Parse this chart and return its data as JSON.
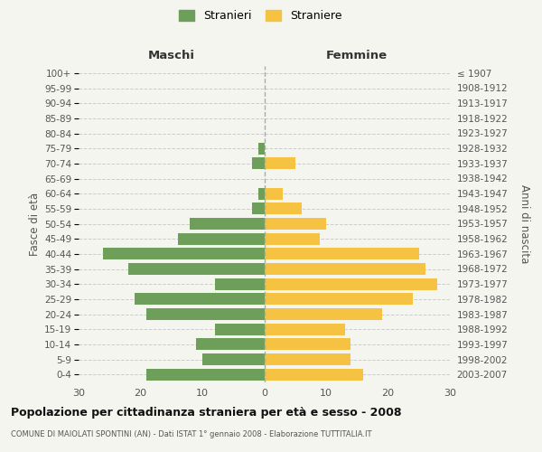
{
  "age_groups": [
    "0-4",
    "5-9",
    "10-14",
    "15-19",
    "20-24",
    "25-29",
    "30-34",
    "35-39",
    "40-44",
    "45-49",
    "50-54",
    "55-59",
    "60-64",
    "65-69",
    "70-74",
    "75-79",
    "80-84",
    "85-89",
    "90-94",
    "95-99",
    "100+"
  ],
  "birth_years": [
    "2003-2007",
    "1998-2002",
    "1993-1997",
    "1988-1992",
    "1983-1987",
    "1978-1982",
    "1973-1977",
    "1968-1972",
    "1963-1967",
    "1958-1962",
    "1953-1957",
    "1948-1952",
    "1943-1947",
    "1938-1942",
    "1933-1937",
    "1928-1932",
    "1923-1927",
    "1918-1922",
    "1913-1917",
    "1908-1912",
    "≤ 1907"
  ],
  "males": [
    19,
    10,
    11,
    8,
    19,
    21,
    8,
    22,
    26,
    14,
    12,
    2,
    1,
    0,
    2,
    1,
    0,
    0,
    0,
    0,
    0
  ],
  "females": [
    16,
    14,
    14,
    13,
    19,
    24,
    28,
    26,
    25,
    9,
    10,
    6,
    3,
    0,
    5,
    0,
    0,
    0,
    0,
    0,
    0
  ],
  "male_color": "#6d9e5a",
  "female_color": "#f5c242",
  "bg_color": "#f5f5f0",
  "grid_color": "#cccccc",
  "title": "Popolazione per cittadinanza straniera per età e sesso - 2008",
  "subtitle": "COMUNE DI MAIOLATI SPONTINI (AN) - Dati ISTAT 1° gennaio 2008 - Elaborazione TUTTITALIA.IT",
  "xlabel_left": "Maschi",
  "xlabel_right": "Femmine",
  "ylabel_left": "Fasce di età",
  "ylabel_right": "Anni di nascita",
  "legend_male": "Stranieri",
  "legend_female": "Straniere",
  "xlim": 30
}
